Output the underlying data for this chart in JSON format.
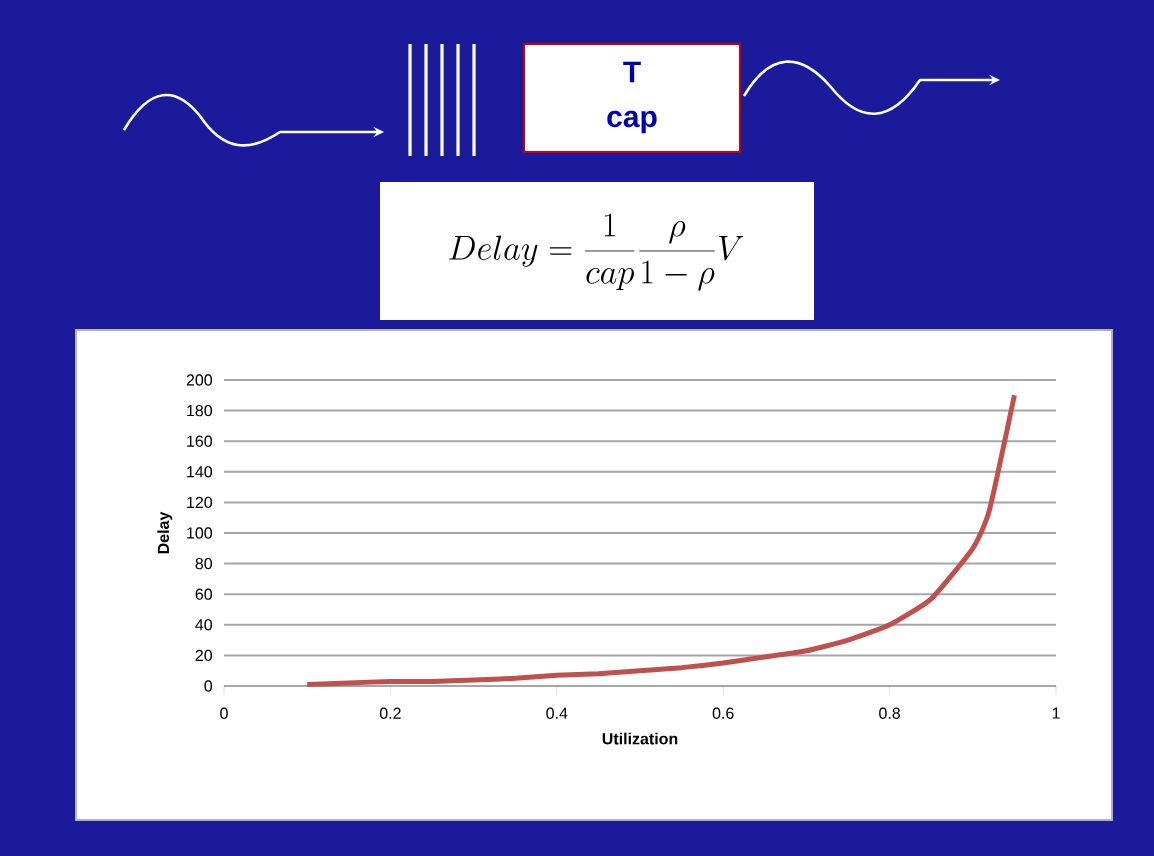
{
  "chart_data": {
    "type": "line",
    "xlabel": "Utilization",
    "ylabel": "Delay",
    "annotations": [
      "T",
      "cap",
      "Delay=\\frac{1}{cap}\\frac{\\rho}{1-\\rho}V"
    ],
    "x": [
      0.1,
      0.15,
      0.2,
      0.25,
      0.3,
      0.35,
      0.4,
      0.45,
      0.5,
      0.55,
      0.6,
      0.65,
      0.7,
      0.75,
      0.8,
      0.85,
      0.9,
      0.92,
      0.95
    ],
    "series": [
      {
        "color": "#c0504d",
        "values": [
          1,
          2,
          3,
          3,
          4,
          5,
          7,
          8,
          10,
          12,
          15,
          19,
          23,
          30,
          40,
          57,
          90,
          115,
          190
        ]
      }
    ],
    "xlim": [
      0,
      1
    ],
    "xticks": [
      0,
      0.2,
      0.4,
      0.6,
      0.8,
      1
    ],
    "ylim": [
      0,
      200
    ],
    "yticks": [
      0,
      20,
      40,
      60,
      80,
      100,
      120,
      140,
      160,
      180,
      200
    ],
    "grid": "y",
    "marker": "none",
    "line_style": "solid"
  }
}
